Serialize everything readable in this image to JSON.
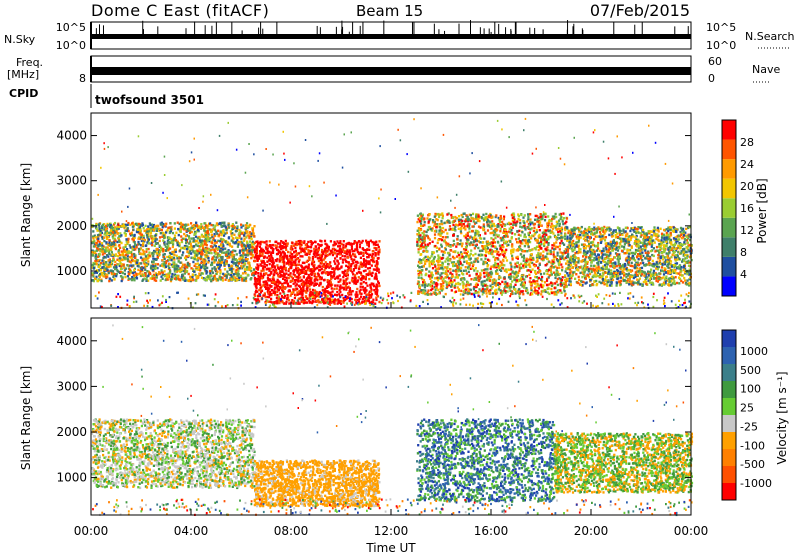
{
  "header": {
    "title": "Dome C East (fitACF)",
    "beam": "Beam 15",
    "date": "07/Feb/2015"
  },
  "colors": {
    "power_scale": [
      "#0000ff",
      "#1f4fa0",
      "#3f7f6a",
      "#5aa450",
      "#9acd32",
      "#f2c600",
      "#ff9a00",
      "#ff5500",
      "#ff0000"
    ],
    "velocity_scale": [
      "#1f3fae",
      "#2d62b0",
      "#3b7f8a",
      "#3f9a3f",
      "#66cc33",
      "#c8c8c8",
      "#ffa000",
      "#ff8000",
      "#ff5000",
      "#ff0000"
    ]
  },
  "panels": {
    "nsky": {
      "left_label": "N.Sky",
      "left_ticks": [
        "10^5",
        "10^0"
      ],
      "right_ticks": [
        "10^5",
        "10^0"
      ],
      "right_label": "N.Search"
    },
    "freq": {
      "left_label_top": "Freq.",
      "left_label_bottom": "[MHz]",
      "left_tick": "8",
      "right_ticks": [
        "60",
        "0"
      ],
      "right_label": "Nave"
    },
    "cpid": {
      "label": "CPID",
      "value": "twofsound 3501"
    }
  },
  "chart_data": [
    {
      "type": "heatmap",
      "name_in_image": "power",
      "ylabel": "Slant Range [km]",
      "xlabel": "",
      "x_ticks": [
        "00:00",
        "04:00",
        "08:00",
        "12:00",
        "16:00",
        "20:00",
        "00:00"
      ],
      "x_range_hours": [
        0,
        24
      ],
      "y_ticks": [
        1000,
        2000,
        3000,
        4000
      ],
      "ylim": [
        180,
        4500
      ],
      "colorbar": {
        "label": "Power [dB]",
        "ticks": [
          4,
          8,
          12,
          16,
          20,
          24,
          28
        ],
        "range": [
          0,
          32
        ]
      },
      "regions": [
        {
          "t0": 0.0,
          "t1": 6.5,
          "r0": 800,
          "r1": 2100,
          "level": "mixed-low"
        },
        {
          "t0": 6.5,
          "t1": 11.5,
          "r0": 300,
          "r1": 1700,
          "level": "high"
        },
        {
          "t0": 13.0,
          "t1": 19.0,
          "r0": 500,
          "r1": 2300,
          "level": "mixed-high"
        },
        {
          "t0": 19.0,
          "t1": 24.0,
          "r0": 700,
          "r1": 2000,
          "level": "mixed-low"
        }
      ]
    },
    {
      "type": "heatmap",
      "name_in_image": "velocity",
      "ylabel": "Slant Range [km]",
      "xlabel": "Time UT",
      "x_ticks": [
        "00:00",
        "04:00",
        "08:00",
        "12:00",
        "16:00",
        "20:00",
        "00:00"
      ],
      "x_range_hours": [
        0,
        24
      ],
      "y_ticks": [
        1000,
        2000,
        3000,
        4000
      ],
      "ylim": [
        180,
        4500
      ],
      "colorbar": {
        "label": "Velocity [m s⁻¹]",
        "ticks": [
          1000,
          500,
          100,
          25,
          -25,
          -100,
          -500,
          -1000
        ]
      },
      "regions": [
        {
          "t0": 0.0,
          "t1": 6.5,
          "r0": 800,
          "r1": 2300,
          "level": "green-grey-orange"
        },
        {
          "t0": 6.5,
          "t1": 11.5,
          "r0": 400,
          "r1": 1400,
          "level": "orange"
        },
        {
          "t0": 13.0,
          "t1": 18.5,
          "r0": 500,
          "r1": 2300,
          "level": "blue-green"
        },
        {
          "t0": 18.5,
          "t1": 24.0,
          "r0": 700,
          "r1": 2000,
          "level": "green-orange"
        }
      ]
    }
  ]
}
